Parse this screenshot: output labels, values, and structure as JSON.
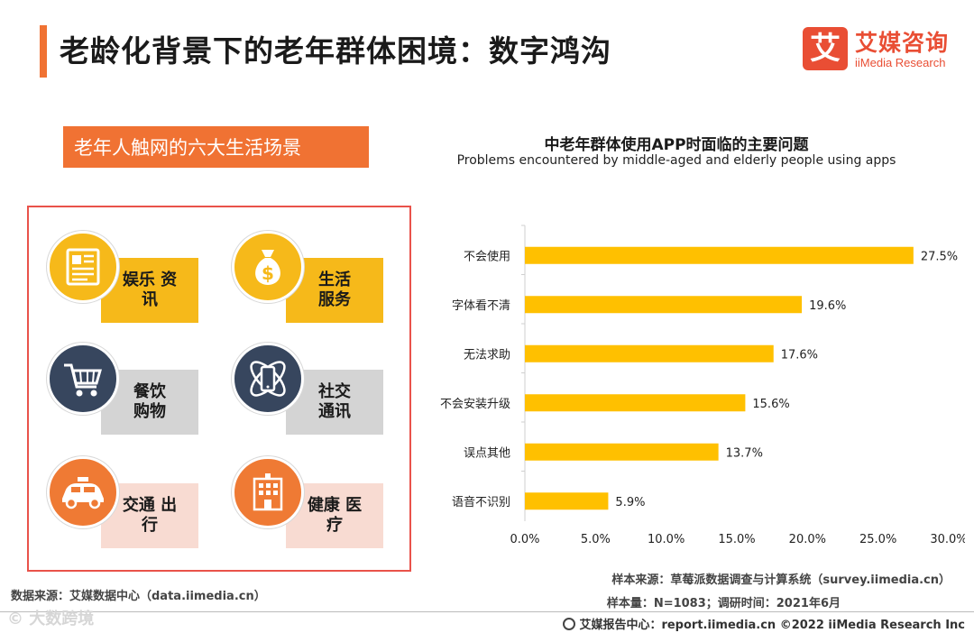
{
  "page": {
    "title": "老龄化背景下的老年群体困境：数字鸿沟"
  },
  "logo": {
    "mark": "艾",
    "name_cn": "艾媒咨询",
    "name_en": "iiMedia Research"
  },
  "scenes": {
    "banner": "老年人触网的六大生活场景",
    "items": [
      {
        "line1": "娱乐 资",
        "line2": "讯",
        "icon": "newspaper-icon"
      },
      {
        "line1": "生活",
        "line2": "服务",
        "icon": "money-bag-icon"
      },
      {
        "line1": "餐饮",
        "line2": "购物",
        "icon": "shopping-cart-icon"
      },
      {
        "line1": "社交",
        "line2": "通讯",
        "icon": "phone-orbit-icon"
      },
      {
        "line1": "交通 出",
        "line2": "行",
        "icon": "taxi-icon"
      },
      {
        "line1": "健康 医",
        "line2": "疗",
        "icon": "hospital-icon"
      }
    ]
  },
  "chart_data": {
    "type": "bar",
    "orientation": "horizontal",
    "title": "中老年群体使用APP时面临的主要问题",
    "subtitle": "Problems encountered by middle-aged and elderly people using apps",
    "categories": [
      "不会使用",
      "字体看不清",
      "无法求助",
      "不会安装升级",
      "误点其他",
      "语音不识别"
    ],
    "values": [
      27.5,
      19.6,
      17.6,
      15.6,
      13.7,
      5.9
    ],
    "value_labels": [
      "27.5%",
      "19.6%",
      "17.6%",
      "15.6%",
      "13.7%",
      "5.9%"
    ],
    "xlim": [
      0,
      30
    ],
    "xticks": [
      "0.0%",
      "5.0%",
      "10.0%",
      "15.0%",
      "20.0%",
      "25.0%",
      "30.0%"
    ],
    "bar_color": "#ffc000",
    "grid": false
  },
  "notes": {
    "data_source": "数据来源：艾媒数据中心（data.iimedia.cn）",
    "sample_source": "样本来源：草莓派数据调查与计算系统（survey.iimedia.cn）",
    "sample_size": "样本量：N=1083；调研时间：2021年6月"
  },
  "footer": {
    "text": "艾媒报告中心：report.iimedia.cn  ©2022  iiMedia Research  Inc",
    "watermark": "© 大数跨境"
  }
}
